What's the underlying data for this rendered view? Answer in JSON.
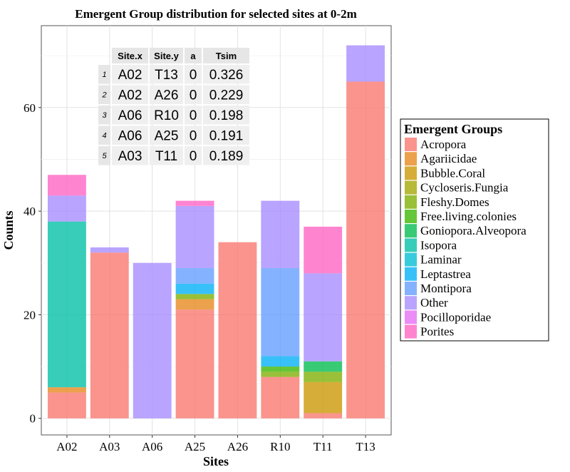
{
  "chart_data": {
    "type": "bar",
    "stacked": true,
    "title": "Emergent Group distribution for selected sites at 0-2m",
    "xlabel": "Sites",
    "ylabel": "Counts",
    "ylim": [
      -3.2,
      75.8
    ],
    "yticks": [
      0,
      20,
      40,
      60
    ],
    "grid": true,
    "legend_position": "right",
    "categories": [
      "A02",
      "A03",
      "A06",
      "A25",
      "A26",
      "R10",
      "T11",
      "T13"
    ],
    "series": [
      {
        "name": "Acropora",
        "color": "#F8766D",
        "values": [
          5,
          32,
          0,
          21,
          34,
          8,
          1,
          65
        ]
      },
      {
        "name": "Agariicidae",
        "color": "#E7861B",
        "values": [
          1,
          0,
          0,
          2,
          0,
          0,
          0,
          0
        ]
      },
      {
        "name": "Bubble.Coral",
        "color": "#CB9600",
        "values": [
          0,
          0,
          0,
          0,
          0,
          0,
          6,
          0
        ]
      },
      {
        "name": "Cycloseris.Fungia",
        "color": "#A3A500",
        "values": [
          0,
          0,
          0,
          0,
          0,
          0,
          0,
          0
        ]
      },
      {
        "name": "Fleshy.Domes",
        "color": "#7CAE00",
        "values": [
          0,
          0,
          0,
          1,
          0,
          1,
          2,
          0
        ]
      },
      {
        "name": "Free.living.colonies",
        "color": "#39B600",
        "values": [
          0,
          0,
          0,
          0,
          0,
          1,
          0,
          0
        ]
      },
      {
        "name": "Goniopora.Alveopora",
        "color": "#00BB4E",
        "values": [
          0,
          0,
          0,
          0,
          0,
          0,
          2,
          0
        ]
      },
      {
        "name": "Isopora",
        "color": "#00BFA4",
        "values": [
          32,
          0,
          0,
          0,
          0,
          0,
          0,
          0
        ]
      },
      {
        "name": "Laminar",
        "color": "#00BDD4",
        "values": [
          0,
          0,
          0,
          0,
          0,
          0,
          0,
          0
        ]
      },
      {
        "name": "Leptastrea",
        "color": "#00B0F6",
        "values": [
          0,
          0,
          0,
          2,
          0,
          2,
          0,
          0
        ]
      },
      {
        "name": "Montipora",
        "color": "#619CFF",
        "values": [
          0,
          0,
          0,
          3,
          0,
          17,
          0,
          0
        ]
      },
      {
        "name": "Other",
        "color": "#A58AFF",
        "values": [
          5,
          1,
          30,
          12,
          0,
          13,
          17,
          7
        ]
      },
      {
        "name": "Pocilloporidae",
        "color": "#E76BF3",
        "values": [
          0,
          0,
          0,
          0,
          0,
          0,
          0,
          0
        ]
      },
      {
        "name": "Porites",
        "color": "#FF61C3",
        "values": [
          4,
          0,
          0,
          1,
          0,
          0,
          9,
          0
        ]
      }
    ]
  },
  "legend": {
    "title": "Emergent Groups"
  },
  "table": {
    "headers": [
      "",
      "Site.x",
      "Site.y",
      "a",
      "Tsim"
    ],
    "rows": [
      [
        "1",
        "A02",
        "T13",
        "0",
        "0.326"
      ],
      [
        "2",
        "A02",
        "A26",
        "0",
        "0.229"
      ],
      [
        "3",
        "A06",
        "R10",
        "0",
        "0.198"
      ],
      [
        "4",
        "A06",
        "A25",
        "0",
        "0.191"
      ],
      [
        "5",
        "A03",
        "T11",
        "0",
        "0.189"
      ]
    ]
  }
}
